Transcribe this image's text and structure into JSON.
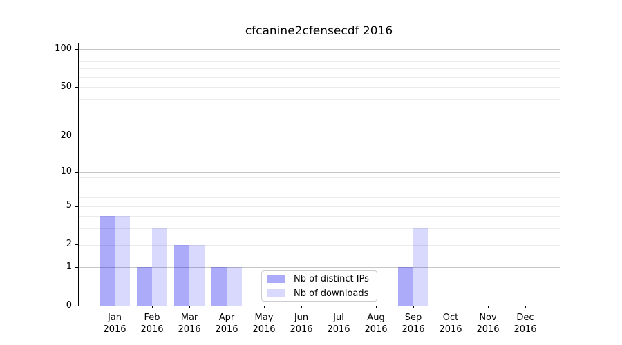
{
  "chart_data": {
    "type": "bar",
    "title": "cfcanine2cfensecdf 2016",
    "x_categories": [
      {
        "month": "Jan",
        "year": "2016"
      },
      {
        "month": "Feb",
        "year": "2016"
      },
      {
        "month": "Mar",
        "year": "2016"
      },
      {
        "month": "Apr",
        "year": "2016"
      },
      {
        "month": "May",
        "year": "2016"
      },
      {
        "month": "Jun",
        "year": "2016"
      },
      {
        "month": "Jul",
        "year": "2016"
      },
      {
        "month": "Aug",
        "year": "2016"
      },
      {
        "month": "Sep",
        "year": "2016"
      },
      {
        "month": "Oct",
        "year": "2016"
      },
      {
        "month": "Nov",
        "year": "2016"
      },
      {
        "month": "Dec",
        "year": "2016"
      }
    ],
    "series": [
      {
        "name": "Nb of distinct IPs",
        "color": "rgba(10,10,240,0.34)",
        "values": [
          4,
          1,
          2,
          1,
          0,
          0,
          0,
          0,
          1,
          0,
          0,
          0
        ]
      },
      {
        "name": "Nb of downloads",
        "color": "rgba(10,10,240,0.155)",
        "values": [
          4,
          3,
          2,
          1,
          0,
          0,
          0,
          0,
          3,
          0,
          0,
          0
        ]
      }
    ],
    "yscale": "log1p",
    "ylim": [
      0,
      112
    ],
    "y_ticks": [
      0,
      1,
      2,
      5,
      10,
      20,
      50,
      100
    ],
    "y_major_grid": [
      1,
      10,
      100
    ],
    "y_minor_grid": [
      2,
      3,
      4,
      5,
      6,
      7,
      8,
      9,
      20,
      30,
      40,
      50,
      60,
      70,
      80,
      90
    ],
    "grid_major_color": "#c6c6c6",
    "grid_minor_color": "#ebebeb",
    "legend_position": "lower center"
  }
}
